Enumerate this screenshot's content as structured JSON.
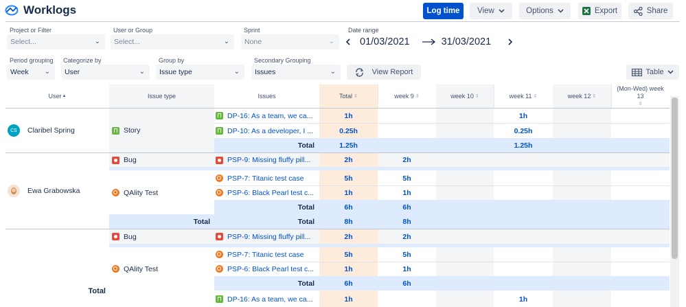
{
  "header": {
    "title": "Worklogs",
    "log_time": "Log time",
    "view": "View",
    "options": "Options",
    "export": "Export",
    "share": "Share"
  },
  "filters": {
    "project_label": "Project or Filter",
    "project_ph": "Select...",
    "user_label": "User or Group",
    "user_ph": "Select...",
    "sprint_label": "Sprint",
    "sprint_value": "None",
    "date_label": "Date range",
    "date_from": "01/03/2021",
    "date_to": "31/03/2021",
    "period_label": "Period grouping",
    "period_value": "Week",
    "categorize_label": "Categorize by",
    "categorize_value": "User",
    "group_label": "Group by",
    "group_value": "Issue type",
    "secondary_label": "Secondary Grouping",
    "secondary_value": "Issues",
    "view_report": "View Report",
    "table": "Table"
  },
  "table": {
    "columns": {
      "user": "User",
      "issue_type": "Issue type",
      "issues": "Issues",
      "total": "Total",
      "week9": "week 9",
      "week10": "week 10",
      "week11": "week 11",
      "week12": "week 12",
      "week13": "(Mon-Wed) week 13"
    },
    "users": [
      {
        "name": "Claribel Spring",
        "initials": "CS"
      },
      {
        "name": "Ewa Grabowska"
      }
    ],
    "types": {
      "story": "Story",
      "bug": "Bug",
      "qa": "QAlity Test"
    },
    "total_label": "Total",
    "issues": {
      "dp16": "DP-16: As a team, we ca...",
      "dp10": "DP-10: As a developer, I ...",
      "psp9": "PSP-9: Missing fluffy pill...",
      "psp7": "PSP-7: Titanic test case",
      "psp6": "PSP-6: Black Pearl test c..."
    },
    "values": {
      "h1": "1h",
      "h025": "0.25h",
      "h125": "1.25h",
      "h2": "2h",
      "h5": "5h",
      "h6": "6h",
      "h8": "8h"
    }
  }
}
